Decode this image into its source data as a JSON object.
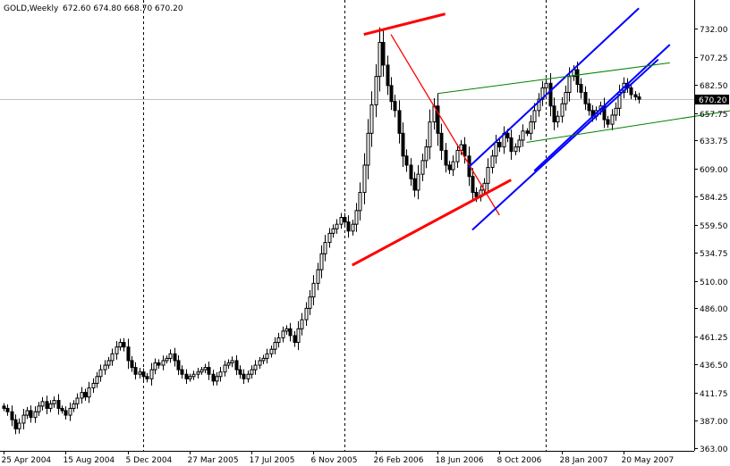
{
  "chart_data": {
    "type": "candlestick",
    "symbol": "GOLD,Weekly",
    "ohlc_text": "672.60 674.80 668.70 670.20",
    "current_price": 670.2,
    "current_price_label": "670.20",
    "ylim": [
      363.0,
      740.0
    ],
    "y_ticks": [
      "732.00",
      "707.25",
      "682.50",
      "657.75",
      "633.75",
      "609.00",
      "584.25",
      "559.50",
      "534.75",
      "510.00",
      "486.00",
      "461.25",
      "436.50",
      "411.75",
      "387.00",
      "363.00"
    ],
    "x_ticks": [
      "25 Apr 2004",
      "15 Aug 2004",
      "5 Dec 2004",
      "27 Mar 2005",
      "17 Jul 2005",
      "6 Nov 2005",
      "26 Feb 2006",
      "18 Jun 2006",
      "8 Oct 2006",
      "28 Jan 2007",
      "20 May 2007"
    ],
    "x_tick_week_index": [
      0,
      16,
      32,
      48,
      64,
      80,
      96,
      112,
      128,
      144,
      160
    ],
    "period_separators_week_index": [
      36,
      88,
      140
    ],
    "trend_lines": [
      {
        "color": "#ff0000",
        "width": 3,
        "from": [
          90,
          524
        ],
        "to": [
          131,
          599
        ]
      },
      {
        "color": "#ff0000",
        "width": 3,
        "from": [
          93,
          727
        ],
        "to": [
          114,
          745
        ]
      },
      {
        "color": "#ff0000",
        "width": 1.3,
        "from": [
          100,
          727
        ],
        "to": [
          128,
          568
        ]
      },
      {
        "color": "#0000ff",
        "width": 2,
        "from": [
          121,
          555
        ],
        "to": [
          169,
          705
        ]
      },
      {
        "color": "#0000ff",
        "width": 2,
        "from": [
          120,
          610
        ],
        "to": [
          164,
          750
        ]
      },
      {
        "color": "#0000ff",
        "width": 2,
        "from": [
          137,
          607
        ],
        "to": [
          172,
          718
        ]
      },
      {
        "color": "#008000",
        "width": 1,
        "from": [
          112,
          675
        ],
        "to": [
          172,
          702
        ]
      },
      {
        "color": "#008000",
        "width": 1,
        "from": [
          135,
          632
        ],
        "to": [
          188,
          660
        ]
      }
    ],
    "weekly_closes": [
      398,
      395,
      388,
      380,
      385,
      392,
      396,
      390,
      395,
      400,
      404,
      398,
      402,
      405,
      398,
      396,
      392,
      398,
      402,
      407,
      412,
      408,
      416,
      420,
      426,
      432,
      436,
      440,
      446,
      452,
      456,
      452,
      440,
      434,
      428,
      430,
      426,
      424,
      432,
      438,
      436,
      440,
      442,
      446,
      440,
      432,
      428,
      424,
      426,
      428,
      430,
      432,
      434,
      428,
      422,
      426,
      430,
      436,
      438,
      440,
      432,
      428,
      424,
      428,
      432,
      436,
      440,
      442,
      446,
      450,
      456,
      460,
      466,
      468,
      462,
      456,
      468,
      476,
      486,
      496,
      508,
      520,
      534,
      544,
      552,
      556,
      560,
      566,
      562,
      554,
      560,
      572,
      588,
      612,
      640,
      665,
      690,
      720,
      700,
      682,
      668,
      660,
      640,
      620,
      612,
      600,
      590,
      604,
      616,
      628,
      650,
      664,
      640,
      625,
      612,
      608,
      615,
      625,
      630,
      620,
      602,
      588,
      584,
      590,
      596,
      610,
      620,
      632,
      628,
      640,
      636,
      624,
      628,
      634,
      642,
      640,
      650,
      660,
      670,
      680,
      684,
      664,
      650,
      655,
      666,
      676,
      690,
      696,
      683,
      676,
      666,
      660,
      655,
      660,
      664,
      652,
      648,
      656,
      662,
      676,
      684,
      680,
      674,
      672,
      670
    ]
  }
}
